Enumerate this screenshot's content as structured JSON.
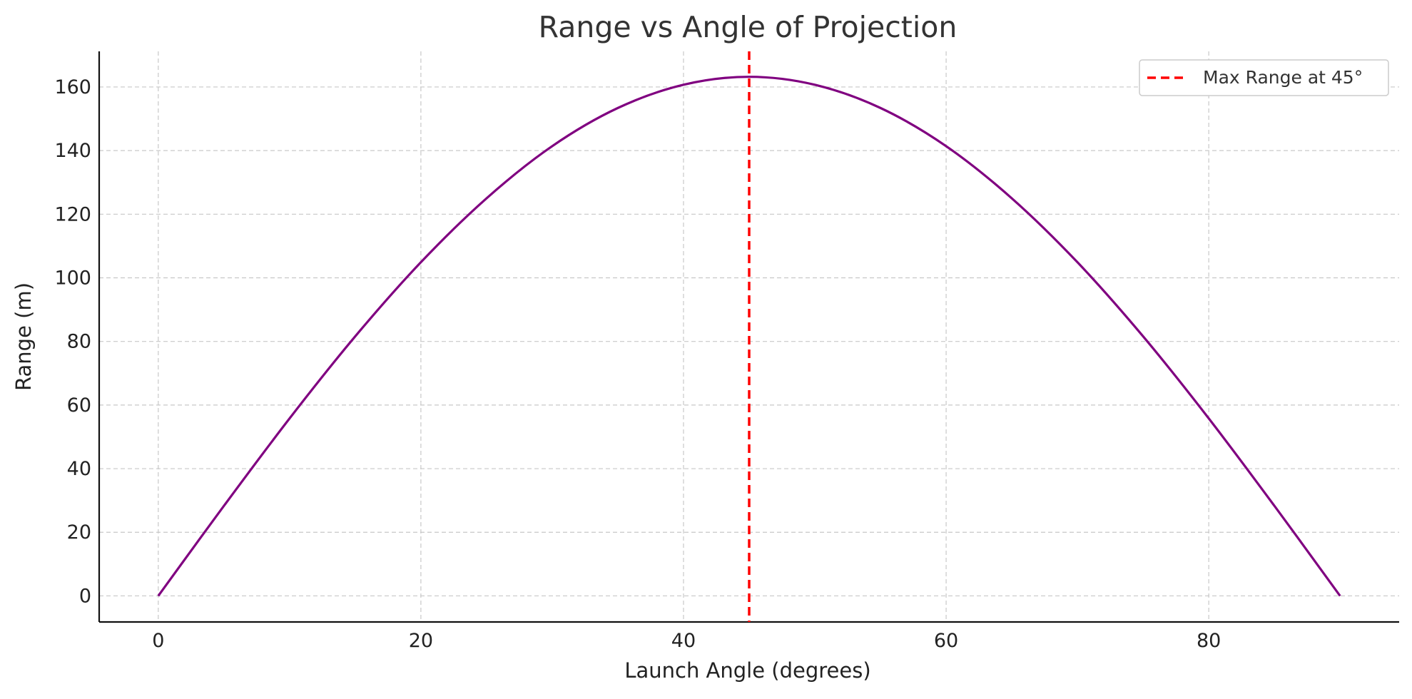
{
  "chart_data": {
    "type": "line",
    "title": "Range vs Angle of Projection",
    "xlabel": "Launch Angle (degrees)",
    "ylabel": "Range (m)",
    "xlim": [
      -4.5,
      94.5
    ],
    "ylim": [
      -8.2,
      171.2
    ],
    "xticks": [
      0,
      20,
      40,
      60,
      80
    ],
    "yticks": [
      0,
      20,
      40,
      60,
      80,
      100,
      120,
      140,
      160
    ],
    "grid": true,
    "legend_position": "top-right",
    "series": [
      {
        "color": "#800080",
        "x": [
          0,
          5,
          10,
          15,
          20,
          25,
          30,
          35,
          40,
          45,
          50,
          55,
          60,
          65,
          70,
          75,
          80,
          85,
          90
        ],
        "y": [
          0,
          28.3,
          55.8,
          81.6,
          104.9,
          125.0,
          141.4,
          153.4,
          160.7,
          163.2,
          160.7,
          153.4,
          141.4,
          125.0,
          104.9,
          81.6,
          55.8,
          28.3,
          0
        ]
      }
    ],
    "vlines": [
      {
        "x": 45,
        "color": "#ff0000",
        "style": "dashed",
        "label": "Max Range at 45°"
      }
    ]
  }
}
